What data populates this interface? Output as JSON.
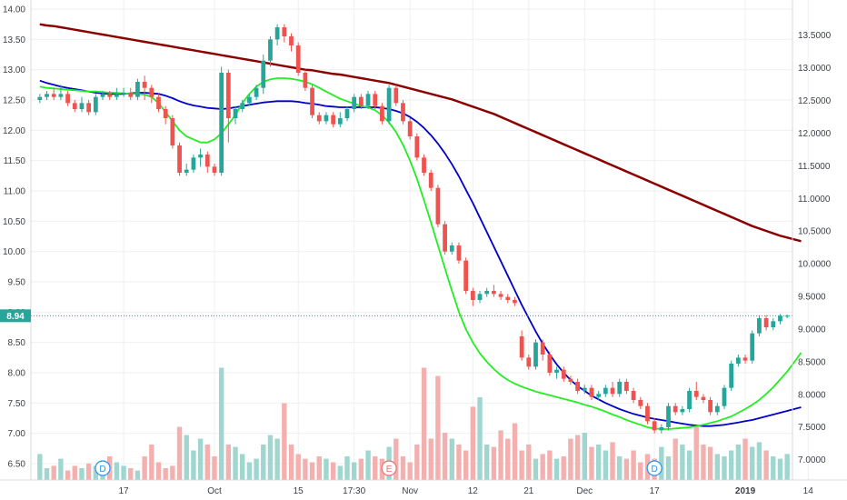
{
  "chart_data": {
    "type": "candlestick",
    "instrument_current_price": "8.94",
    "left_axis": {
      "ylim": [
        6.35,
        14.0
      ],
      "ticks": [
        "14.00",
        "13.50",
        "13.00",
        "12.50",
        "12.00",
        "11.50",
        "11.00",
        "10.50",
        "10.00",
        "9.50",
        "9.00",
        "8.50",
        "8.00",
        "7.50",
        "7.00",
        "6.50"
      ]
    },
    "right_axis": {
      "ylim": [
        6.8,
        13.9
      ],
      "ticks": [
        "13.5000",
        "13.0000",
        "12.5000",
        "12.0000",
        "11.5000",
        "11.0000",
        "10.5000",
        "10.0000",
        "9.5000",
        "9.0000",
        "8.5000",
        "8.0000",
        "7.5000",
        "7.0000"
      ]
    },
    "x_labels": [
      {
        "i": 12,
        "label": "17",
        "bold": false
      },
      {
        "i": 25,
        "label": "Oct",
        "bold": false
      },
      {
        "i": 37,
        "label": "15",
        "bold": false
      },
      {
        "i": 45,
        "label": "17:30",
        "bold": false
      },
      {
        "i": 53,
        "label": "Nov",
        "bold": false
      },
      {
        "i": 62,
        "label": "12",
        "bold": false
      },
      {
        "i": 70,
        "label": "21",
        "bold": false
      },
      {
        "i": 78,
        "label": "Dec",
        "bold": false
      },
      {
        "i": 88,
        "label": "17",
        "bold": false
      },
      {
        "i": 101,
        "label": "2019",
        "bold": true
      },
      {
        "i": 110,
        "label": "14",
        "bold": false
      }
    ],
    "candles": [
      [
        12.5,
        12.55,
        12.45,
        12.6
      ],
      [
        12.55,
        12.6,
        12.5,
        12.65
      ],
      [
        12.6,
        12.55,
        12.5,
        12.7
      ],
      [
        12.55,
        12.6,
        12.5,
        12.75
      ],
      [
        12.6,
        12.45,
        12.4,
        12.65
      ],
      [
        12.45,
        12.35,
        12.3,
        12.5
      ],
      [
        12.35,
        12.45,
        12.3,
        12.55
      ],
      [
        12.45,
        12.3,
        12.25,
        12.5
      ],
      [
        12.3,
        12.55,
        12.25,
        12.6
      ],
      [
        12.55,
        12.6,
        12.5,
        12.65
      ],
      [
        12.6,
        12.55,
        12.5,
        12.65
      ],
      [
        12.55,
        12.6,
        12.5,
        12.7
      ],
      [
        12.6,
        12.62,
        12.55,
        12.7
      ],
      [
        12.62,
        12.55,
        12.5,
        12.7
      ],
      [
        12.55,
        12.8,
        12.5,
        12.85
      ],
      [
        12.8,
        12.7,
        12.5,
        12.9
      ],
      [
        12.7,
        12.55,
        12.45,
        12.75
      ],
      [
        12.55,
        12.35,
        12.3,
        12.6
      ],
      [
        12.35,
        12.2,
        12.1,
        12.4
      ],
      [
        12.2,
        11.75,
        11.7,
        12.25
      ],
      [
        11.75,
        11.3,
        11.25,
        11.8
      ],
      [
        11.3,
        11.35,
        11.25,
        11.45
      ],
      [
        11.35,
        11.55,
        11.3,
        11.6
      ],
      [
        11.55,
        11.6,
        11.4,
        11.7
      ],
      [
        11.6,
        11.4,
        11.3,
        11.65
      ],
      [
        11.4,
        11.3,
        11.25,
        11.45
      ],
      [
        11.3,
        12.95,
        11.25,
        13.05
      ],
      [
        12.95,
        12.2,
        11.8,
        13.0
      ],
      [
        12.2,
        12.35,
        12.1,
        12.4
      ],
      [
        12.35,
        12.45,
        12.3,
        12.5
      ],
      [
        12.45,
        12.55,
        12.4,
        12.6
      ],
      [
        12.55,
        12.7,
        12.5,
        12.75
      ],
      [
        12.7,
        13.15,
        12.6,
        13.25
      ],
      [
        13.15,
        13.5,
        13.05,
        13.55
      ],
      [
        13.5,
        13.7,
        13.4,
        13.75
      ],
      [
        13.7,
        13.55,
        13.45,
        13.75
      ],
      [
        13.55,
        13.4,
        13.3,
        13.6
      ],
      [
        13.4,
        12.95,
        12.9,
        13.45
      ],
      [
        12.95,
        12.7,
        12.65,
        13.0
      ],
      [
        12.7,
        12.25,
        12.2,
        12.75
      ],
      [
        12.25,
        12.15,
        12.1,
        12.3
      ],
      [
        12.15,
        12.25,
        12.1,
        12.3
      ],
      [
        12.25,
        12.1,
        12.05,
        12.3
      ],
      [
        12.1,
        12.2,
        12.05,
        12.3
      ],
      [
        12.2,
        12.35,
        12.15,
        12.4
      ],
      [
        12.35,
        12.55,
        12.3,
        12.6
      ],
      [
        12.55,
        12.4,
        12.35,
        12.6
      ],
      [
        12.4,
        12.6,
        12.35,
        12.65
      ],
      [
        12.6,
        12.4,
        12.35,
        12.65
      ],
      [
        12.4,
        12.15,
        12.1,
        12.45
      ],
      [
        12.15,
        12.7,
        12.1,
        12.75
      ],
      [
        12.7,
        12.45,
        12.4,
        12.75
      ],
      [
        12.45,
        12.15,
        12.1,
        12.5
      ],
      [
        12.15,
        11.9,
        11.85,
        12.2
      ],
      [
        11.9,
        11.55,
        11.5,
        11.95
      ],
      [
        11.55,
        11.3,
        11.25,
        11.6
      ],
      [
        11.3,
        11.05,
        11.0,
        11.35
      ],
      [
        11.05,
        10.45,
        10.4,
        11.1
      ],
      [
        10.45,
        10.0,
        9.95,
        10.5
      ],
      [
        10.0,
        10.1,
        9.95,
        10.15
      ],
      [
        10.1,
        9.85,
        9.8,
        10.15
      ],
      [
        9.85,
        9.35,
        9.3,
        9.9
      ],
      [
        9.35,
        9.2,
        9.1,
        9.4
      ],
      [
        9.2,
        9.3,
        9.15,
        9.35
      ],
      [
        9.3,
        9.35,
        9.25,
        9.4
      ],
      [
        9.35,
        9.3,
        9.25,
        9.45
      ],
      [
        9.3,
        9.25,
        9.2,
        9.35
      ],
      [
        9.25,
        9.2,
        9.15,
        9.3
      ],
      [
        9.2,
        9.15,
        9.1,
        9.25
      ],
      [
        8.6,
        8.25,
        8.2,
        8.7
      ],
      [
        8.25,
        8.1,
        8.05,
        8.3
      ],
      [
        8.1,
        8.5,
        8.05,
        8.55
      ],
      [
        8.5,
        8.3,
        8.2,
        8.55
      ],
      [
        8.3,
        8.0,
        7.95,
        8.35
      ],
      [
        8.0,
        8.05,
        7.9,
        8.1
      ],
      [
        8.05,
        7.9,
        7.85,
        8.1
      ],
      [
        7.9,
        7.85,
        7.8,
        7.95
      ],
      [
        7.85,
        7.7,
        7.65,
        7.9
      ],
      [
        7.7,
        7.75,
        7.65,
        7.8
      ],
      [
        7.75,
        7.6,
        7.55,
        7.8
      ],
      [
        7.6,
        7.65,
        7.55,
        7.7
      ],
      [
        7.65,
        7.75,
        7.6,
        7.8
      ],
      [
        7.75,
        7.65,
        7.6,
        7.85
      ],
      [
        7.65,
        7.85,
        7.6,
        7.9
      ],
      [
        7.85,
        7.7,
        7.65,
        7.9
      ],
      [
        7.7,
        7.55,
        7.5,
        7.75
      ],
      [
        7.55,
        7.45,
        7.4,
        7.6
      ],
      [
        7.45,
        7.2,
        7.15,
        7.5
      ],
      [
        7.2,
        7.05,
        7.0,
        7.25
      ],
      [
        7.05,
        7.1,
        7.0,
        7.15
      ],
      [
        7.1,
        7.45,
        7.05,
        7.5
      ],
      [
        7.45,
        7.35,
        7.3,
        7.5
      ],
      [
        7.35,
        7.4,
        7.3,
        7.45
      ],
      [
        7.4,
        7.7,
        7.35,
        7.75
      ],
      [
        7.7,
        7.6,
        7.55,
        7.85
      ],
      [
        7.6,
        7.55,
        7.5,
        7.65
      ],
      [
        7.55,
        7.35,
        7.3,
        7.6
      ],
      [
        7.35,
        7.45,
        7.3,
        7.5
      ],
      [
        7.45,
        7.75,
        7.4,
        7.8
      ],
      [
        7.75,
        8.15,
        7.7,
        8.2
      ],
      [
        8.15,
        8.25,
        8.1,
        8.3
      ],
      [
        8.25,
        8.2,
        8.15,
        8.3
      ],
      [
        8.2,
        8.65,
        8.15,
        8.7
      ],
      [
        8.65,
        8.9,
        8.6,
        8.95
      ],
      [
        8.9,
        8.75,
        8.7,
        8.95
      ],
      [
        8.75,
        8.85,
        8.7,
        8.9
      ],
      [
        8.85,
        8.94,
        8.8,
        8.97
      ],
      [
        8.94,
        8.94,
        8.9,
        8.96
      ]
    ],
    "volumes": [
      0.22,
      0.1,
      0.12,
      0.18,
      0.08,
      0.12,
      0.1,
      0.14,
      0.12,
      0.08,
      0.2,
      0.15,
      0.12,
      0.1,
      0.08,
      0.2,
      0.3,
      0.15,
      0.1,
      0.12,
      0.45,
      0.38,
      0.25,
      0.35,
      0.3,
      0.2,
      0.95,
      0.3,
      0.28,
      0.22,
      0.15,
      0.18,
      0.3,
      0.38,
      0.35,
      0.65,
      0.3,
      0.22,
      0.18,
      0.15,
      0.2,
      0.18,
      0.15,
      0.12,
      0.2,
      0.15,
      0.18,
      0.25,
      0.2,
      0.18,
      0.28,
      0.35,
      0.2,
      0.15,
      0.3,
      0.95,
      0.35,
      0.88,
      0.4,
      0.35,
      0.3,
      0.25,
      0.62,
      0.7,
      0.3,
      0.28,
      0.42,
      0.35,
      0.48,
      0.25,
      0.3,
      0.18,
      0.22,
      0.25,
      0.18,
      0.2,
      0.35,
      0.38,
      0.4,
      0.28,
      0.3,
      0.25,
      0.32,
      0.2,
      0.18,
      0.25,
      0.15,
      0.22,
      0.18,
      0.28,
      0.2,
      0.35,
      0.3,
      0.25,
      0.45,
      0.3,
      0.28,
      0.22,
      0.2,
      0.25,
      0.3,
      0.35,
      0.28,
      0.32,
      0.25,
      0.2,
      0.18,
      0.22,
      0.25,
      0.08
    ],
    "series": [
      {
        "color": "#8b0000",
        "values": [
          13.75,
          13.73,
          13.72,
          13.7,
          13.68,
          13.66,
          13.64,
          13.62,
          13.6,
          13.58,
          13.56,
          13.54,
          13.52,
          13.5,
          13.48,
          13.46,
          13.44,
          13.42,
          13.4,
          13.38,
          13.36,
          13.34,
          13.32,
          13.3,
          13.28,
          13.26,
          13.24,
          13.22,
          13.2,
          13.18,
          13.16,
          13.14,
          13.12,
          13.1,
          13.08,
          13.06,
          13.04,
          13.02,
          13.0,
          12.99,
          12.97,
          12.95,
          12.93,
          12.92,
          12.9,
          12.88,
          12.86,
          12.84,
          12.82,
          12.8,
          12.78,
          12.75,
          12.72,
          12.69,
          12.66,
          12.63,
          12.6,
          12.57,
          12.54,
          12.51,
          12.47,
          12.43,
          12.39,
          12.35,
          12.31,
          12.27,
          12.22,
          12.17,
          12.12,
          12.07,
          12.02,
          11.97,
          11.92,
          11.87,
          11.82,
          11.77,
          11.72,
          11.67,
          11.62,
          11.57,
          11.52,
          11.47,
          11.42,
          11.37,
          11.32,
          11.27,
          11.22,
          11.17,
          11.12,
          11.07,
          11.02,
          10.97,
          10.92,
          10.87,
          10.82,
          10.77,
          10.72,
          10.67,
          10.62,
          10.57,
          10.52,
          10.47,
          10.42,
          10.38,
          10.34,
          10.3,
          10.26,
          10.23,
          10.2,
          10.17
        ]
      },
      {
        "color": "#0000c8",
        "values": [
          12.82,
          12.78,
          12.75,
          12.72,
          12.7,
          12.68,
          12.66,
          12.64,
          12.62,
          12.61,
          12.6,
          12.6,
          12.6,
          12.61,
          12.62,
          12.62,
          12.61,
          12.6,
          12.57,
          12.53,
          12.48,
          12.44,
          12.41,
          12.39,
          12.37,
          12.36,
          12.35,
          12.36,
          12.38,
          12.4,
          12.42,
          12.44,
          12.46,
          12.47,
          12.48,
          12.48,
          12.48,
          12.47,
          12.45,
          12.44,
          12.42,
          12.4,
          12.39,
          12.38,
          12.38,
          12.38,
          12.38,
          12.38,
          12.38,
          12.37,
          12.35,
          12.32,
          12.28,
          12.22,
          12.14,
          12.04,
          11.92,
          11.78,
          11.62,
          11.44,
          11.24,
          11.02,
          10.8,
          10.56,
          10.32,
          10.08,
          9.84,
          9.6,
          9.36,
          9.12,
          8.9,
          8.68,
          8.48,
          8.3,
          8.14,
          8.0,
          7.88,
          7.78,
          7.7,
          7.62,
          7.56,
          7.5,
          7.45,
          7.4,
          7.36,
          7.32,
          7.29,
          7.26,
          7.24,
          7.22,
          7.2,
          7.18,
          7.16,
          7.14,
          7.13,
          7.12,
          7.12,
          7.13,
          7.14,
          7.16,
          7.18,
          7.2,
          7.22,
          7.25,
          7.28,
          7.31,
          7.34,
          7.37,
          7.4,
          7.43
        ]
      },
      {
        "color": "#22ee22",
        "values": [
          12.72,
          12.7,
          12.69,
          12.68,
          12.67,
          12.66,
          12.65,
          12.64,
          12.64,
          12.63,
          12.62,
          12.62,
          12.61,
          12.6,
          12.6,
          12.59,
          12.55,
          12.45,
          12.3,
          12.15,
          12.0,
          11.9,
          11.85,
          11.8,
          11.8,
          11.85,
          11.95,
          12.1,
          12.25,
          12.45,
          12.6,
          12.72,
          12.8,
          12.84,
          12.86,
          12.86,
          12.85,
          12.83,
          12.8,
          12.76,
          12.7,
          12.64,
          12.58,
          12.52,
          12.48,
          12.44,
          12.4,
          12.38,
          12.33,
          12.25,
          12.13,
          11.97,
          11.76,
          11.5,
          11.2,
          10.85,
          10.48,
          10.1,
          9.72,
          9.35,
          9.0,
          8.72,
          8.5,
          8.32,
          8.18,
          8.06,
          7.96,
          7.88,
          7.82,
          7.77,
          7.73,
          7.69,
          7.66,
          7.63,
          7.6,
          7.57,
          7.54,
          7.51,
          7.47,
          7.44,
          7.4,
          7.36,
          7.31,
          7.27,
          7.22,
          7.18,
          7.14,
          7.1,
          7.08,
          7.07,
          7.07,
          7.08,
          7.09,
          7.1,
          7.12,
          7.14,
          7.17,
          7.2,
          7.24,
          7.28,
          7.34,
          7.4,
          7.47,
          7.55,
          7.65,
          7.76,
          7.89,
          8.02,
          8.17,
          8.33
        ]
      }
    ],
    "event_markers": [
      {
        "i": 9,
        "label": "D",
        "type": "dividend"
      },
      {
        "i": 50,
        "label": "E",
        "type": "earnings"
      },
      {
        "i": 88,
        "label": "D",
        "type": "dividend"
      }
    ],
    "colors": {
      "up": "#26a69a",
      "down": "#ef5350",
      "vol_up": "#9fd6cf",
      "vol_down": "#f4b0ae"
    },
    "grid": true
  }
}
